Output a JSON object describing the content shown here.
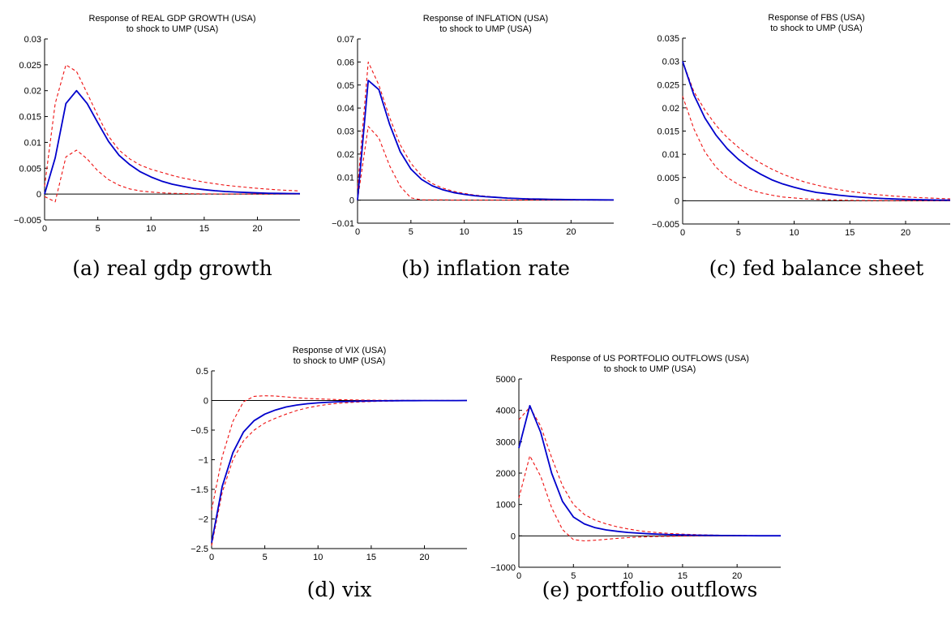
{
  "colors": {
    "irf": "#0000cc",
    "bands": "#ee1111",
    "zero_line": "#000000",
    "axis": "#000000"
  },
  "chart_data": [
    {
      "type": "line",
      "title": "Response of REAL GDP GROWTH (USA)",
      "subtitle": "to shock to UMP (USA)",
      "caption": "(a) real gdp growth",
      "xlim": [
        0,
        24
      ],
      "ylim": [
        -0.005,
        0.03
      ],
      "xticks": [
        0,
        5,
        10,
        15,
        20
      ],
      "yticks": [
        -0.005,
        0,
        0.005,
        0.01,
        0.015,
        0.02,
        0.025,
        0.03
      ],
      "ytick_labels": [
        "−0.005",
        "0",
        "0.005",
        "0.01",
        "0.015",
        "0.02",
        "0.025",
        "0.03"
      ],
      "x": [
        0,
        1,
        2,
        3,
        4,
        5,
        6,
        7,
        8,
        9,
        10,
        11,
        12,
        13,
        14,
        15,
        16,
        17,
        18,
        19,
        20,
        21,
        22,
        23,
        24
      ],
      "series": [
        {
          "role": "response",
          "style": "solid",
          "values": [
            0,
            0.007,
            0.0175,
            0.02,
            0.0175,
            0.0138,
            0.0102,
            0.0075,
            0.0057,
            0.0043,
            0.0033,
            0.0025,
            0.0019,
            0.0015,
            0.0011,
            0.00085,
            0.00065,
            0.0005,
            0.0004,
            0.0003,
            0.00022,
            0.00017,
            0.00013,
            0.0001,
            8e-05
          ]
        },
        {
          "role": "upper band",
          "style": "dashed",
          "values": [
            0.0015,
            0.0175,
            0.025,
            0.0237,
            0.0195,
            0.0152,
            0.0112,
            0.0085,
            0.0068,
            0.0056,
            0.0048,
            0.0042,
            0.0036,
            0.0031,
            0.0027,
            0.0023,
            0.002,
            0.0017,
            0.0015,
            0.0013,
            0.0011,
            0.00095,
            0.0008,
            0.0007,
            0.0006
          ]
        },
        {
          "role": "lower band",
          "style": "dashed",
          "values": [
            -0.0005,
            -0.0015,
            0.0072,
            0.0085,
            0.0068,
            0.0045,
            0.0028,
            0.0017,
            0.001,
            0.0006,
            0.0004,
            0.00025,
            0.00015,
            0.0001,
            6e-05,
            4e-05,
            2e-05,
            1e-05,
            0,
            0,
            0,
            0,
            0,
            0,
            0
          ]
        }
      ]
    },
    {
      "type": "line",
      "title": "Response of INFLATION (USA)",
      "subtitle": "to shock to UMP (USA)",
      "caption": "(b) inflation rate",
      "xlim": [
        0,
        24
      ],
      "ylim": [
        -0.01,
        0.07
      ],
      "xticks": [
        0,
        5,
        10,
        15,
        20
      ],
      "yticks": [
        -0.01,
        0,
        0.01,
        0.02,
        0.03,
        0.04,
        0.05,
        0.06,
        0.07
      ],
      "ytick_labels": [
        "−0.01",
        "0",
        "0.01",
        "0.02",
        "0.03",
        "0.04",
        "0.05",
        "0.06",
        "0.07"
      ],
      "x": [
        0,
        1,
        2,
        3,
        4,
        5,
        6,
        7,
        8,
        9,
        10,
        11,
        12,
        13,
        14,
        15,
        16,
        17,
        18,
        19,
        20,
        21,
        22,
        23,
        24
      ],
      "series": [
        {
          "role": "response",
          "style": "solid",
          "values": [
            0,
            0.052,
            0.048,
            0.033,
            0.021,
            0.0135,
            0.009,
            0.0062,
            0.0045,
            0.0033,
            0.0025,
            0.0019,
            0.0015,
            0.0012,
            0.0009,
            0.0007,
            0.00055,
            0.00045,
            0.00035,
            0.00028,
            0.00022,
            0.00018,
            0.00014,
            0.00011,
            9e-05
          ]
        },
        {
          "role": "upper band",
          "style": "dashed",
          "values": [
            0.005,
            0.06,
            0.05,
            0.036,
            0.024,
            0.016,
            0.0105,
            0.0072,
            0.0052,
            0.0038,
            0.0029,
            0.0022,
            0.0017,
            0.0013,
            0.001,
            0.0008,
            0.00065,
            0.0005,
            0.0004,
            0.0003,
            0.00025,
            0.0002,
            0.00016,
            0.00013,
            0.0001
          ]
        },
        {
          "role": "lower band",
          "style": "dashed",
          "values": [
            0,
            0.032,
            0.027,
            0.015,
            0.006,
            0.001,
            0.0001,
            0.0001,
            0.0001,
            0,
            0,
            0,
            0,
            0,
            0,
            0,
            0,
            0,
            0,
            0,
            0,
            0,
            0,
            0,
            0
          ]
        }
      ]
    },
    {
      "type": "line",
      "title": "Response of FBS (USA)",
      "subtitle": "to shock to UMP (USA)",
      "caption": "(c) fed balance sheet",
      "xlim": [
        0,
        24
      ],
      "ylim": [
        -0.005,
        0.035
      ],
      "xticks": [
        0,
        5,
        10,
        15,
        20
      ],
      "yticks": [
        -0.005,
        0,
        0.005,
        0.01,
        0.015,
        0.02,
        0.025,
        0.03,
        0.035
      ],
      "ytick_labels": [
        "−0.005",
        "0",
        "0.005",
        "0.01",
        "0.015",
        "0.02",
        "0.025",
        "0.03",
        "0.035"
      ],
      "x": [
        0,
        1,
        2,
        3,
        4,
        5,
        6,
        7,
        8,
        9,
        10,
        11,
        12,
        13,
        14,
        15,
        16,
        17,
        18,
        19,
        20,
        21,
        22,
        23,
        24
      ],
      "series": [
        {
          "role": "response",
          "style": "solid",
          "values": [
            0.03,
            0.0228,
            0.0178,
            0.0141,
            0.0112,
            0.0089,
            0.0071,
            0.0057,
            0.0045,
            0.0036,
            0.0029,
            0.0023,
            0.0018,
            0.0015,
            0.0012,
            0.00095,
            0.00076,
            0.0006,
            0.00048,
            0.00038,
            0.0003,
            0.00024,
            0.00019,
            0.00015,
            0.00012
          ]
        },
        {
          "role": "upper band",
          "style": "dashed",
          "values": [
            0.03,
            0.0235,
            0.0195,
            0.0162,
            0.0136,
            0.0115,
            0.0096,
            0.0081,
            0.0068,
            0.0057,
            0.0048,
            0.004,
            0.0034,
            0.0028,
            0.0024,
            0.002,
            0.0017,
            0.0014,
            0.0012,
            0.001,
            0.00085,
            0.0007,
            0.0006,
            0.0005,
            0.0004
          ]
        },
        {
          "role": "lower band",
          "style": "dashed",
          "values": [
            0.0225,
            0.0155,
            0.0105,
            0.0072,
            0.005,
            0.0035,
            0.0024,
            0.0017,
            0.0012,
            0.0008,
            0.0006,
            0.0004,
            0.0003,
            0.0002,
            0.00015,
            0.0001,
            7e-05,
            5e-05,
            3e-05,
            2e-05,
            1e-05,
            0,
            0,
            0,
            0
          ]
        }
      ]
    },
    {
      "type": "line",
      "title": "Response of VIX (USA)",
      "subtitle": "to shock to UMP (USA)",
      "caption": "(d) vix",
      "xlim": [
        0,
        24
      ],
      "ylim": [
        -2.5,
        0.5
      ],
      "xticks": [
        0,
        5,
        10,
        15,
        20
      ],
      "yticks": [
        -2.5,
        -2,
        -1.5,
        -1,
        -0.5,
        0,
        0.5
      ],
      "ytick_labels": [
        "−2.5",
        "−2",
        "−1.5",
        "−1",
        "−0.5",
        "0",
        "0.5"
      ],
      "x": [
        0,
        1,
        2,
        3,
        4,
        5,
        6,
        7,
        8,
        9,
        10,
        11,
        12,
        13,
        14,
        15,
        16,
        17,
        18,
        19,
        20,
        21,
        22,
        23,
        24
      ],
      "series": [
        {
          "role": "response",
          "style": "solid",
          "values": [
            -2.4,
            -1.45,
            -0.88,
            -0.53,
            -0.34,
            -0.23,
            -0.16,
            -0.11,
            -0.077,
            -0.055,
            -0.04,
            -0.029,
            -0.021,
            -0.015,
            -0.011,
            -0.008,
            -0.006,
            -0.0045,
            -0.0033,
            -0.0024,
            -0.0018,
            -0.0013,
            -0.001,
            -0.0007,
            -0.0005
          ]
        },
        {
          "role": "upper band",
          "style": "dashed",
          "values": [
            -1.85,
            -0.95,
            -0.35,
            -0.02,
            0.07,
            0.08,
            0.075,
            0.06,
            0.045,
            0.034,
            0.026,
            0.02,
            0.015,
            0.011,
            0.008,
            0.006,
            0.0045,
            0.0034,
            0.0025,
            0.0019,
            0.0014,
            0.001,
            0.0008,
            0.0006,
            0.0004
          ]
        },
        {
          "role": "lower band",
          "style": "dashed",
          "values": [
            -2.45,
            -1.55,
            -1.0,
            -0.68,
            -0.5,
            -0.38,
            -0.3,
            -0.23,
            -0.17,
            -0.125,
            -0.09,
            -0.065,
            -0.047,
            -0.034,
            -0.025,
            -0.018,
            -0.013,
            -0.009,
            -0.0065,
            -0.0047,
            -0.0034,
            -0.0025,
            -0.0018,
            -0.0013,
            -0.001
          ]
        }
      ]
    },
    {
      "type": "line",
      "title": "Response of US PORTFOLIO OUTFLOWS (USA)",
      "subtitle": "to shock to UMP (USA)",
      "caption": "(e) portfolio outflows",
      "xlim": [
        0,
        24
      ],
      "ylim": [
        -1000,
        5000
      ],
      "xticks": [
        0,
        5,
        10,
        15,
        20
      ],
      "yticks": [
        -1000,
        0,
        1000,
        2000,
        3000,
        4000,
        5000
      ],
      "ytick_labels": [
        "−1000",
        "0",
        "1000",
        "2000",
        "3000",
        "4000",
        "5000"
      ],
      "x": [
        0,
        1,
        2,
        3,
        4,
        5,
        6,
        7,
        8,
        9,
        10,
        11,
        12,
        13,
        14,
        15,
        16,
        17,
        18,
        19,
        20,
        21,
        22,
        23,
        24
      ],
      "series": [
        {
          "role": "response",
          "style": "solid",
          "values": [
            2800,
            4150,
            3300,
            2000,
            1100,
            600,
            380,
            260,
            190,
            145,
            110,
            85,
            65,
            50,
            38,
            29,
            22,
            17,
            13,
            10,
            8,
            6,
            4.5,
            3.5,
            2.5
          ]
        },
        {
          "role": "upper band",
          "style": "dashed",
          "values": [
            3700,
            4100,
            3500,
            2500,
            1600,
            1000,
            680,
            500,
            380,
            290,
            220,
            165,
            125,
            95,
            72,
            55,
            42,
            32,
            24,
            18,
            14,
            10,
            8,
            6,
            4.5
          ]
        },
        {
          "role": "lower band",
          "style": "dashed",
          "values": [
            1200,
            2550,
            1900,
            900,
            200,
            -120,
            -160,
            -140,
            -110,
            -80,
            -55,
            -38,
            -26,
            -18,
            -12,
            -8,
            -5.5,
            -3.8,
            -2.6,
            -1.8,
            -1.2,
            -0.8,
            -0.5,
            -0.3,
            -0.2
          ]
        }
      ]
    }
  ]
}
